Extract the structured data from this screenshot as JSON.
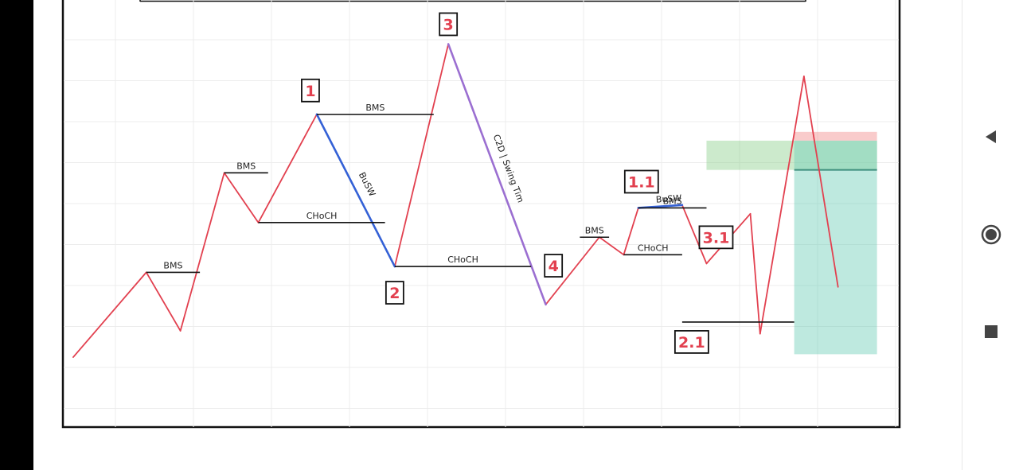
{
  "chart_data": {
    "type": "line",
    "title": "",
    "xlabel": "",
    "ylabel": "",
    "grid": true,
    "legend": "none",
    "price_path": [
      [
        0,
        12
      ],
      [
        15,
        41
      ],
      [
        22,
        21
      ],
      [
        31,
        75
      ],
      [
        38,
        58
      ],
      [
        50,
        95
      ],
      [
        66,
        43
      ],
      [
        77,
        119
      ],
      [
        97,
        30
      ],
      [
        108,
        53
      ],
      [
        113,
        47
      ],
      [
        116,
        63
      ],
      [
        125,
        64
      ],
      [
        130,
        44
      ],
      [
        139,
        61
      ],
      [
        141,
        20
      ],
      [
        150,
        108
      ],
      [
        157,
        36
      ]
    ],
    "swing_segments": [
      {
        "label": "BuSW",
        "from": [
          50,
          95
        ],
        "to": [
          66,
          43
        ],
        "color": "#3461d6"
      },
      {
        "label": "C2D | Swing Tim",
        "from": [
          77,
          119
        ],
        "to": [
          97,
          30
        ],
        "color": "#9b6fd1"
      },
      {
        "label": "BuSW",
        "from": [
          116,
          63
        ],
        "to": [
          125,
          64
        ],
        "color": "#3461d6"
      }
    ],
    "structure_lines": [
      {
        "label": "BMS",
        "x1": 15,
        "x2": 26,
        "y": 41
      },
      {
        "label": "BMS",
        "x1": 31,
        "x2": 40,
        "y": 75
      },
      {
        "label": "CHoCH",
        "x1": 38,
        "x2": 64,
        "y": 58
      },
      {
        "label": "BMS",
        "x1": 50,
        "x2": 74,
        "y": 95
      },
      {
        "label": "CHoCH",
        "x1": 66,
        "x2": 94,
        "y": 43
      },
      {
        "label": "BMS",
        "x1": 104,
        "x2": 110,
        "y": 53
      },
      {
        "label": "CHoCH",
        "x1": 113,
        "x2": 125,
        "y": 47
      },
      {
        "label": "BMS",
        "x1": 116,
        "x2": 130,
        "y": 63
      },
      {
        "label": "",
        "x1": 125,
        "x2": 148,
        "y": 24
      }
    ],
    "point_labels": [
      {
        "text": "1",
        "x": 50,
        "y": 95
      },
      {
        "text": "2",
        "x": 66,
        "y": 43
      },
      {
        "text": "3",
        "x": 77,
        "y": 119
      },
      {
        "text": "4",
        "x": 94,
        "y": 43
      },
      {
        "text": "1.1",
        "x": 116,
        "y": 63
      },
      {
        "text": "2.1",
        "x": 125,
        "y": 24
      },
      {
        "text": "3.1",
        "x": 130,
        "y": 44
      }
    ],
    "zones": [
      {
        "name": "supply",
        "x1": 130,
        "x2": 165,
        "y1": 76,
        "y2": 86,
        "color": "#8fd18f"
      },
      {
        "name": "stop",
        "x1": 148,
        "x2": 165,
        "y1": 86,
        "y2": 89,
        "color": "#f28b8b"
      },
      {
        "name": "target",
        "x1": 148,
        "x2": 165,
        "y1": 13,
        "y2": 86,
        "color": "#6fcfb8"
      }
    ],
    "entry_line": {
      "x1": 148,
      "x2": 165,
      "y": 76
    },
    "xlim": [
      0,
      168
    ],
    "ylim": [
      -10,
      130
    ],
    "colors": {
      "price": "#e2404f",
      "structure": "#111111",
      "label": "#e2404f"
    }
  },
  "nav": {
    "back_icon": "triangle-left",
    "home_icon": "circle",
    "recents_icon": "square"
  }
}
